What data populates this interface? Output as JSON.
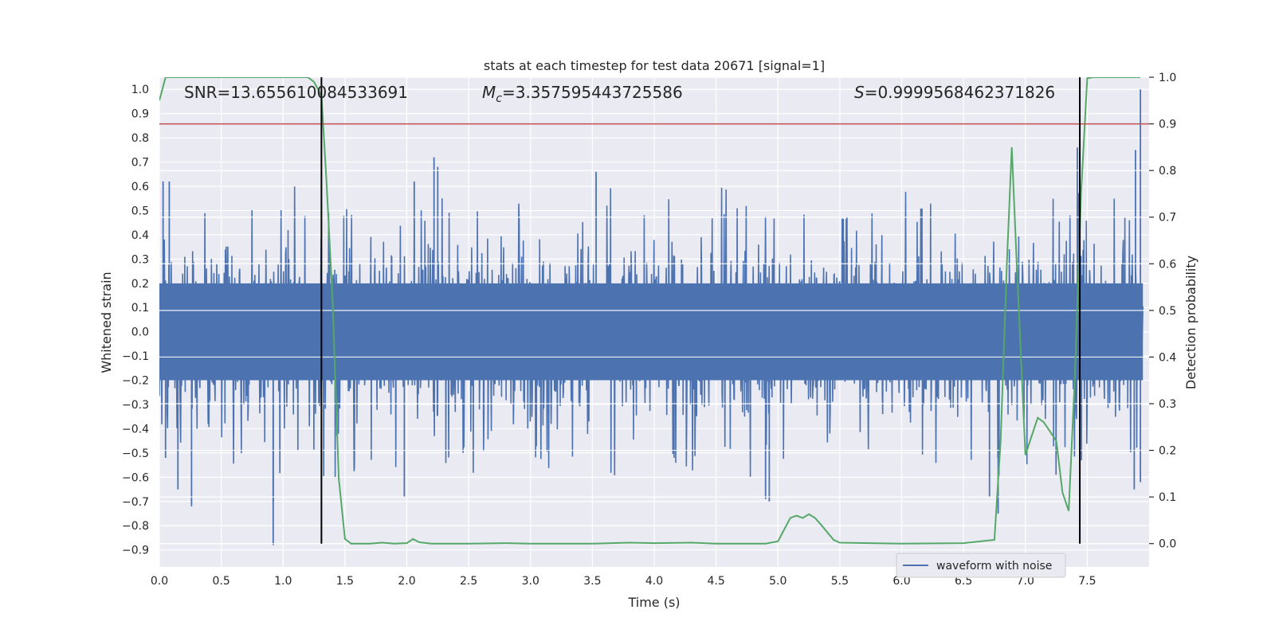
{
  "chart_data": {
    "type": "line",
    "title": "stats at each timestep for test data 20671 [signal=1]",
    "xlabel": "Time (s)",
    "ylabel": "Whitened strain",
    "y2label": "Detection probability",
    "xlim": [
      0.0,
      8.0
    ],
    "ylim": [
      -0.97,
      1.05
    ],
    "y2lim": [
      -0.05,
      1.0
    ],
    "x_ticks": [
      0.0,
      0.5,
      1.0,
      1.5,
      2.0,
      2.5,
      3.0,
      3.5,
      4.0,
      4.5,
      5.0,
      5.5,
      6.0,
      6.5,
      7.0,
      7.5
    ],
    "x_tick_labels": [
      "0.0",
      "0.5",
      "1.0",
      "1.5",
      "2.0",
      "2.5",
      "3.0",
      "3.5",
      "4.0",
      "4.5",
      "5.0",
      "5.5",
      "6.0",
      "6.5",
      "7.0",
      "7.5"
    ],
    "y_ticks": [
      1.0,
      0.9,
      0.8,
      0.7,
      0.6,
      0.5,
      0.4,
      0.3,
      0.2,
      0.1,
      0.0,
      -0.1,
      -0.2,
      -0.3,
      -0.4,
      -0.5,
      -0.6,
      -0.7,
      -0.8,
      -0.9
    ],
    "y_tick_labels": [
      "1.0",
      "0.9",
      "0.8",
      "0.7",
      "0.6",
      "0.5",
      "0.4",
      "0.3",
      "0.2",
      "0.1",
      "0.0",
      "−0.1",
      "−0.2",
      "−0.3",
      "−0.4",
      "−0.5",
      "−0.6",
      "−0.7",
      "−0.8",
      "−0.9"
    ],
    "y2_ticks": [
      1.0,
      0.9,
      0.8,
      0.7,
      0.6,
      0.5,
      0.4,
      0.3,
      0.2,
      0.1,
      0.0
    ],
    "y2_tick_labels": [
      "1.0",
      "0.9",
      "0.8",
      "0.7",
      "0.6",
      "0.5",
      "0.4",
      "0.3",
      "0.2",
      "0.1",
      "0.0"
    ],
    "grid": true,
    "legend": {
      "position": "lower-right",
      "entries": [
        {
          "label": "waveform with noise",
          "color": "#4c72b0"
        }
      ]
    },
    "annotations": {
      "snr": "SNR=13.655610084533691",
      "mc_symbol": "M",
      "mc_sub": "c",
      "mc_value": "=3.357595443725586",
      "s_symbol": "S",
      "s_value": "=0.9999568462371826"
    },
    "threshold_y2": 0.9,
    "vlines_x": [
      1.31,
      7.44
    ],
    "series": [
      {
        "name": "waveform with noise",
        "axis": "left",
        "color": "#4c72b0",
        "kind": "dense-noise",
        "core_amplitude": 0.2,
        "typical_peak": 0.45,
        "spikes": [
          {
            "x": 0.03,
            "y": 0.62
          },
          {
            "x": 0.05,
            "y": -0.52
          },
          {
            "x": 0.08,
            "y": 0.62
          },
          {
            "x": 0.15,
            "y": -0.65
          },
          {
            "x": 0.26,
            "y": -0.72
          },
          {
            "x": 0.92,
            "y": -0.88
          },
          {
            "x": 0.92,
            "y": -0.7
          },
          {
            "x": 1.98,
            "y": -0.68
          },
          {
            "x": 2.06,
            "y": 0.62
          },
          {
            "x": 2.22,
            "y": 0.72
          },
          {
            "x": 2.25,
            "y": 0.68
          },
          {
            "x": 3.53,
            "y": 0.66
          },
          {
            "x": 4.9,
            "y": -0.69
          },
          {
            "x": 4.93,
            "y": -0.7
          },
          {
            "x": 6.71,
            "y": -0.68
          },
          {
            "x": 6.78,
            "y": -0.75
          },
          {
            "x": 7.42,
            "y": 0.76
          },
          {
            "x": 7.44,
            "y": 0.74
          },
          {
            "x": 7.88,
            "y": -0.65
          },
          {
            "x": 7.89,
            "y": 0.75
          },
          {
            "x": 7.93,
            "y": 1.0
          },
          {
            "x": 7.93,
            "y": -0.62
          }
        ]
      },
      {
        "name": "",
        "axis": "right",
        "color": "#55a868",
        "x": [
          0.0,
          0.05,
          0.1,
          0.2,
          0.3,
          0.4,
          0.5,
          0.6,
          0.7,
          0.8,
          0.9,
          1.0,
          1.1,
          1.2,
          1.25,
          1.31,
          1.35,
          1.4,
          1.45,
          1.5,
          1.55,
          1.6,
          1.7,
          1.8,
          1.9,
          2.0,
          2.05,
          2.1,
          2.2,
          2.3,
          2.5,
          2.8,
          3.0,
          3.5,
          3.8,
          4.0,
          4.3,
          4.5,
          4.9,
          5.0,
          5.05,
          5.1,
          5.15,
          5.2,
          5.25,
          5.3,
          5.35,
          5.45,
          5.5,
          6.0,
          6.5,
          6.75,
          6.8,
          6.85,
          6.89,
          6.93,
          7.0,
          7.05,
          7.1,
          7.15,
          7.2,
          7.25,
          7.3,
          7.35,
          7.4,
          7.45,
          7.5,
          7.55,
          7.6,
          7.7,
          7.8,
          7.93
        ],
        "y": [
          0.95,
          1.0,
          1.0,
          1.0,
          1.0,
          1.0,
          1.0,
          1.0,
          1.0,
          1.0,
          1.0,
          1.0,
          1.0,
          1.0,
          0.99,
          0.96,
          0.78,
          0.52,
          0.14,
          0.01,
          0.0,
          0.0,
          0.0,
          0.002,
          0.0,
          0.001,
          0.01,
          0.003,
          0.0,
          0.0,
          0.0,
          0.001,
          0.0,
          0.0,
          0.002,
          0.001,
          0.002,
          0.0,
          0.0,
          0.005,
          0.03,
          0.055,
          0.06,
          0.055,
          0.063,
          0.055,
          0.04,
          0.008,
          0.002,
          0.0,
          0.001,
          0.008,
          0.22,
          0.6,
          0.85,
          0.6,
          0.19,
          0.23,
          0.27,
          0.26,
          0.24,
          0.22,
          0.11,
          0.07,
          0.36,
          0.75,
          0.998,
          1.0,
          1.0,
          1.0,
          1.0,
          1.0
        ]
      }
    ]
  }
}
